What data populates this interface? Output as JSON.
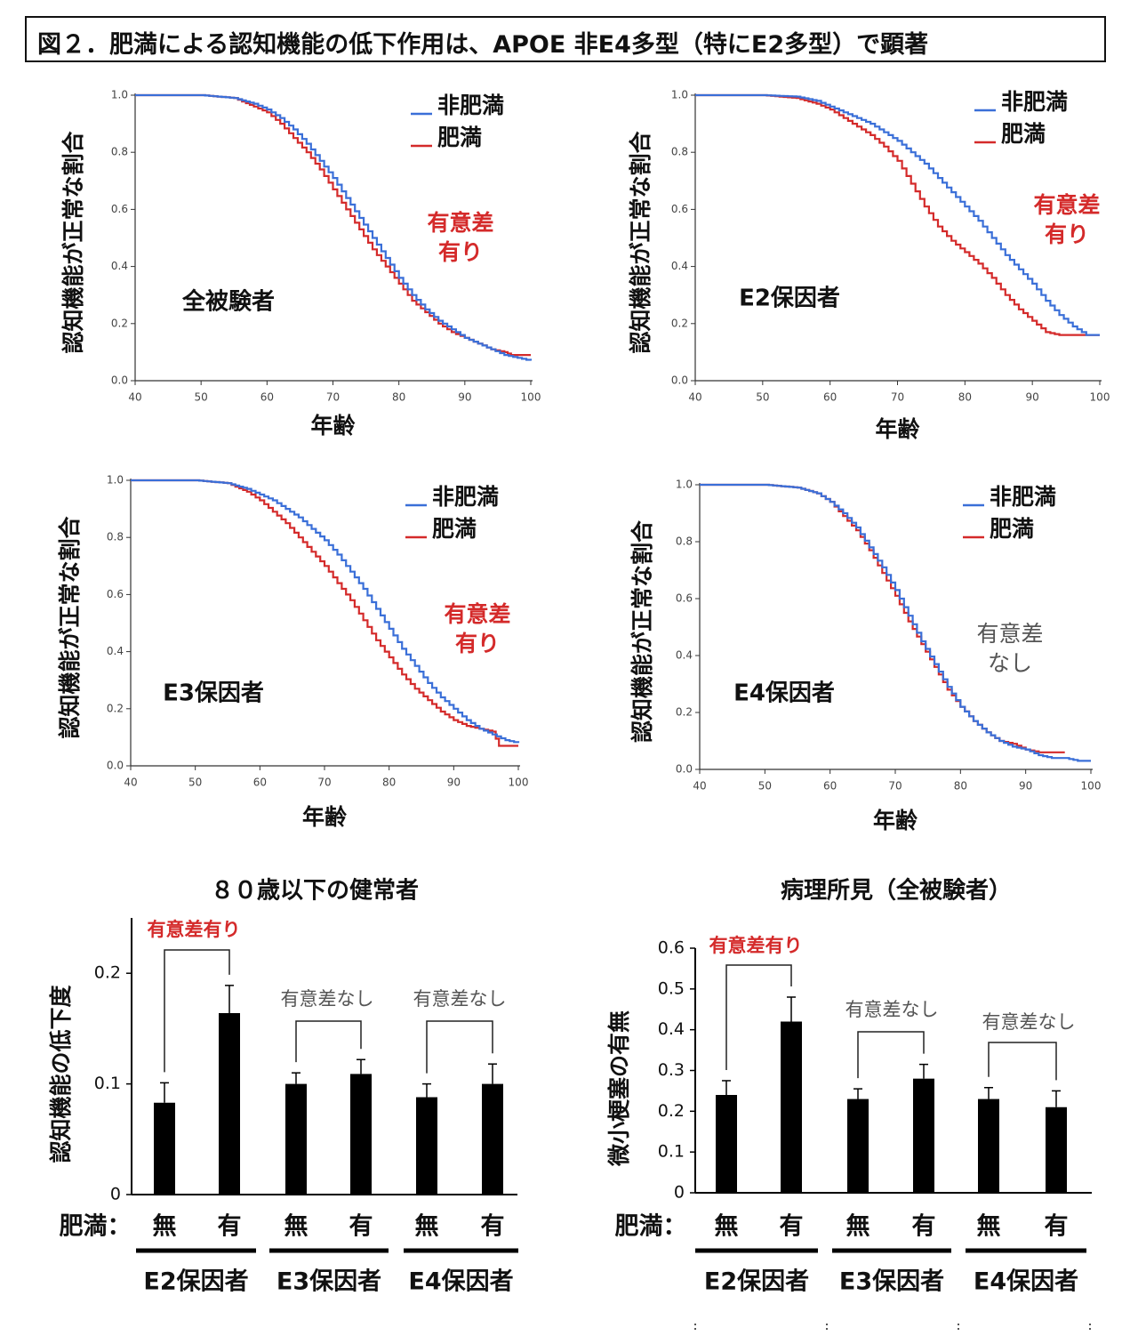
{
  "page": {
    "title": "図２．肥満による認知機能の低下作用は、APOE 非E4多型（特にE2多型）で顕著"
  },
  "colors": {
    "non_obese": "#3a6fd8",
    "obese": "#d42a2a",
    "signif": "#d42a2a",
    "nonsig": "#555555",
    "bar": "#000000"
  },
  "chart_data": [
    {
      "type": "line",
      "title": "全被験者",
      "xlabel": "年齢",
      "ylabel": "認知機能が正常な割合",
      "xlim": [
        40,
        100
      ],
      "ylim": [
        0,
        1.0
      ],
      "xticks": [
        "40",
        "50",
        "60",
        "70",
        "80",
        "90",
        "100"
      ],
      "yticks": [
        "0.0",
        "0.2",
        "0.4",
        "0.6",
        "0.8",
        "1.0"
      ],
      "legend": [
        "非肥満",
        "肥満"
      ],
      "annotation": "有意差有り",
      "annotation_significant": true,
      "series": [
        {
          "name": "非肥満",
          "color": "#3a6fd8",
          "x": [
            40,
            50,
            55,
            58,
            60,
            62,
            64,
            66,
            68,
            70,
            72,
            74,
            76,
            78,
            80,
            82,
            84,
            86,
            88,
            90,
            92,
            94,
            96,
            98,
            100
          ],
          "y": [
            1.0,
            1.0,
            0.99,
            0.97,
            0.95,
            0.92,
            0.88,
            0.83,
            0.77,
            0.71,
            0.64,
            0.57,
            0.5,
            0.43,
            0.36,
            0.3,
            0.25,
            0.21,
            0.18,
            0.15,
            0.13,
            0.11,
            0.09,
            0.08,
            0.07
          ]
        },
        {
          "name": "肥満",
          "color": "#d42a2a",
          "x": [
            40,
            50,
            55,
            58,
            60,
            62,
            64,
            66,
            68,
            70,
            72,
            74,
            76,
            78,
            80,
            82,
            84,
            86,
            88,
            90,
            92,
            94,
            96,
            97,
            100
          ],
          "y": [
            1.0,
            1.0,
            0.99,
            0.96,
            0.94,
            0.9,
            0.85,
            0.8,
            0.74,
            0.67,
            0.6,
            0.53,
            0.46,
            0.4,
            0.34,
            0.28,
            0.24,
            0.2,
            0.17,
            0.15,
            0.13,
            0.11,
            0.1,
            0.09,
            0.09
          ]
        }
      ]
    },
    {
      "type": "line",
      "title": "E2保因者",
      "xlabel": "年齢",
      "ylabel": "認知機能が正常な割合",
      "xlim": [
        40,
        100
      ],
      "ylim": [
        0,
        1.0
      ],
      "xticks": [
        "40",
        "50",
        "60",
        "70",
        "80",
        "90",
        "100"
      ],
      "yticks": [
        "0.0",
        "0.2",
        "0.4",
        "0.6",
        "0.8",
        "1.0"
      ],
      "legend": [
        "非肥満",
        "肥満"
      ],
      "annotation": "有意差有り",
      "annotation_significant": true,
      "series": [
        {
          "name": "非肥満",
          "color": "#3a6fd8",
          "x": [
            40,
            50,
            55,
            58,
            60,
            62,
            64,
            66,
            68,
            70,
            72,
            74,
            76,
            78,
            80,
            82,
            84,
            86,
            88,
            90,
            92,
            94,
            96,
            98,
            100
          ],
          "y": [
            1.0,
            1.0,
            0.995,
            0.98,
            0.96,
            0.94,
            0.92,
            0.9,
            0.87,
            0.84,
            0.8,
            0.76,
            0.71,
            0.66,
            0.61,
            0.56,
            0.5,
            0.44,
            0.39,
            0.34,
            0.28,
            0.23,
            0.19,
            0.16,
            0.16
          ]
        },
        {
          "name": "肥満",
          "color": "#d42a2a",
          "x": [
            40,
            50,
            55,
            58,
            60,
            62,
            64,
            66,
            68,
            70,
            72,
            74,
            76,
            78,
            80,
            82,
            84,
            86,
            88,
            90,
            92,
            94,
            96,
            98,
            100
          ],
          "y": [
            1.0,
            1.0,
            0.99,
            0.97,
            0.95,
            0.92,
            0.89,
            0.86,
            0.82,
            0.77,
            0.69,
            0.61,
            0.54,
            0.49,
            0.45,
            0.41,
            0.36,
            0.3,
            0.25,
            0.21,
            0.17,
            0.16,
            0.16,
            0.16,
            0.16
          ]
        }
      ]
    },
    {
      "type": "line",
      "title": "E3保因者",
      "xlabel": "年齢",
      "ylabel": "認知機能が正常な割合",
      "xlim": [
        40,
        100
      ],
      "ylim": [
        0,
        1.0
      ],
      "xticks": [
        "40",
        "50",
        "60",
        "70",
        "80",
        "90",
        "100"
      ],
      "yticks": [
        "0.0",
        "0.2",
        "0.4",
        "0.6",
        "0.8",
        "1.0"
      ],
      "legend": [
        "非肥満",
        "肥満"
      ],
      "annotation": "有意差有り",
      "annotation_significant": true,
      "series": [
        {
          "name": "非肥満",
          "color": "#3a6fd8",
          "x": [
            40,
            50,
            55,
            58,
            60,
            62,
            64,
            66,
            68,
            70,
            72,
            74,
            76,
            78,
            80,
            82,
            84,
            86,
            88,
            90,
            92,
            94,
            96,
            98,
            100
          ],
          "y": [
            1.0,
            1.0,
            0.99,
            0.97,
            0.95,
            0.93,
            0.9,
            0.87,
            0.83,
            0.79,
            0.74,
            0.68,
            0.62,
            0.55,
            0.48,
            0.41,
            0.35,
            0.29,
            0.24,
            0.2,
            0.16,
            0.13,
            0.11,
            0.09,
            0.08
          ]
        },
        {
          "name": "肥満",
          "color": "#d42a2a",
          "x": [
            40,
            50,
            55,
            58,
            60,
            62,
            64,
            66,
            68,
            70,
            72,
            74,
            76,
            78,
            80,
            82,
            84,
            86,
            88,
            90,
            92,
            94,
            96,
            97,
            100
          ],
          "y": [
            1.0,
            1.0,
            0.99,
            0.96,
            0.93,
            0.89,
            0.85,
            0.8,
            0.75,
            0.7,
            0.64,
            0.58,
            0.51,
            0.44,
            0.38,
            0.32,
            0.27,
            0.23,
            0.19,
            0.16,
            0.14,
            0.13,
            0.12,
            0.07,
            0.07
          ]
        }
      ]
    },
    {
      "type": "line",
      "title": "E4保因者",
      "xlabel": "年齢",
      "ylabel": "認知機能が正常な割合",
      "xlim": [
        40,
        100
      ],
      "ylim": [
        0,
        1.0
      ],
      "xticks": [
        "40",
        "50",
        "60",
        "70",
        "80",
        "90",
        "100"
      ],
      "yticks": [
        "0.0",
        "0.2",
        "0.4",
        "0.6",
        "0.8",
        "1.0"
      ],
      "legend": [
        "非肥満",
        "肥満"
      ],
      "annotation": "有意差なし",
      "annotation_significant": false,
      "series": [
        {
          "name": "非肥満",
          "color": "#3a6fd8",
          "x": [
            40,
            50,
            55,
            58,
            60,
            62,
            64,
            66,
            68,
            70,
            72,
            74,
            76,
            78,
            80,
            82,
            84,
            86,
            88,
            90,
            92,
            94,
            96,
            98,
            100
          ],
          "y": [
            1.0,
            1.0,
            0.99,
            0.97,
            0.94,
            0.9,
            0.85,
            0.78,
            0.71,
            0.63,
            0.54,
            0.45,
            0.37,
            0.29,
            0.22,
            0.17,
            0.13,
            0.1,
            0.08,
            0.07,
            0.05,
            0.04,
            0.04,
            0.03,
            0.03
          ]
        },
        {
          "name": "肥満",
          "color": "#d42a2a",
          "x": [
            40,
            50,
            55,
            58,
            60,
            62,
            64,
            66,
            68,
            70,
            72,
            74,
            76,
            78,
            80,
            82,
            84,
            86,
            88,
            90,
            92,
            94,
            96
          ],
          "y": [
            1.0,
            1.0,
            0.99,
            0.97,
            0.94,
            0.89,
            0.84,
            0.77,
            0.69,
            0.61,
            0.52,
            0.44,
            0.36,
            0.28,
            0.22,
            0.17,
            0.13,
            0.1,
            0.09,
            0.07,
            0.06,
            0.06,
            0.06
          ]
        }
      ]
    },
    {
      "type": "bar",
      "title": "８０歳以下の健常者",
      "ylabel": "認知機能の低下度",
      "ylim": [
        0,
        0.25
      ],
      "yticks": [
        "0",
        "0.1",
        "0.2"
      ],
      "obesity_label": "肥満：",
      "categories": [
        "無",
        "有",
        "無",
        "有",
        "無",
        "有"
      ],
      "groups": [
        "E2保因者",
        "E3保因者",
        "E4保因者"
      ],
      "values": [
        0.083,
        0.164,
        0.1,
        0.109,
        0.088,
        0.1
      ],
      "errors": [
        0.018,
        0.025,
        0.01,
        0.013,
        0.012,
        0.018
      ],
      "comparisons": [
        {
          "label": "有意差有り",
          "significant": true
        },
        {
          "label": "有意差なし",
          "significant": false
        },
        {
          "label": "有意差なし",
          "significant": false
        }
      ]
    },
    {
      "type": "bar",
      "title": "病理所見（全被験者）",
      "ylabel": "微小梗塞の有無",
      "ylim": [
        0,
        0.6
      ],
      "yticks": [
        "0",
        "0.1",
        "0.2",
        "0.3",
        "0.4",
        "0.5",
        "0.6"
      ],
      "obesity_label": "肥満：",
      "categories": [
        "無",
        "有",
        "無",
        "有",
        "無",
        "有"
      ],
      "groups": [
        "E2保因者",
        "E3保因者",
        "E4保因者"
      ],
      "values": [
        0.24,
        0.42,
        0.23,
        0.28,
        0.23,
        0.21
      ],
      "errors": [
        0.035,
        0.06,
        0.025,
        0.035,
        0.028,
        0.04
      ],
      "comparisons": [
        {
          "label": "有意差有り",
          "significant": true
        },
        {
          "label": "有意差なし",
          "significant": false
        },
        {
          "label": "有意差なし",
          "significant": false
        }
      ]
    }
  ]
}
